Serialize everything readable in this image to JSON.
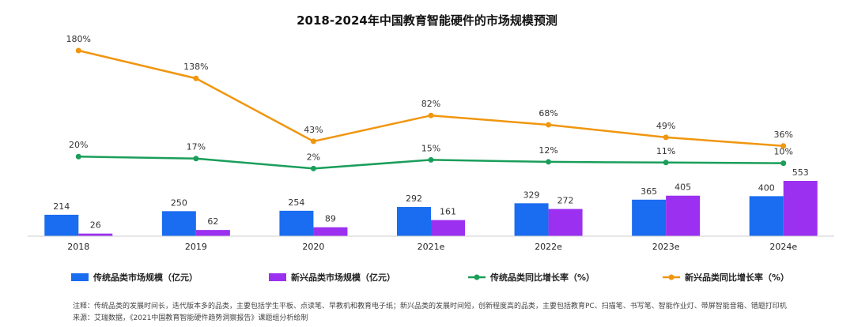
{
  "chart_data": {
    "type": "bar",
    "title": "2018-2024年中国教育智能硬件的市场规模预测",
    "categories": [
      "2018",
      "2019",
      "2020",
      "2021e",
      "2022e",
      "2023e",
      "2024e"
    ],
    "series": [
      {
        "name": "传统品类市场规模（亿元）",
        "kind": "bar",
        "color": "#1a6cf0",
        "values": [
          214,
          250,
          254,
          292,
          329,
          365,
          400
        ]
      },
      {
        "name": "新兴品类市场规模（亿元）",
        "kind": "bar",
        "color": "#9b30f0",
        "values": [
          26,
          62,
          89,
          161,
          272,
          405,
          553
        ]
      },
      {
        "name": "传统品类同比增长率（%）",
        "kind": "line",
        "color": "#1a9e5a",
        "values": [
          20,
          17,
          2,
          15,
          12,
          11,
          10
        ],
        "labels": [
          "20%",
          "17%",
          "2%",
          "15%",
          "12%",
          "11%",
          "10%"
        ]
      },
      {
        "name": "新兴品类同比增长率（%）",
        "kind": "line",
        "color": "#f0960f",
        "values": [
          180,
          138,
          43,
          82,
          68,
          49,
          36
        ],
        "labels": [
          "180%",
          "138%",
          "43%",
          "82%",
          "68%",
          "49%",
          "36%"
        ]
      }
    ],
    "legend_position": "bottom",
    "grid": false
  },
  "footnote": {
    "note": "注释：传统品类的发展时间长，迭代版本多的品类，主要包括学生平板、点读笔、早教机和教育电子纸；新兴品类的发展时间短，创新程度高的品类，主要包括教育PC、扫描笔、书写笔、智能作业灯、带屏智能音箱、错题打印机",
    "source": "来源：艾瑞数据，《2021中国教育智能硬件趋势洞察报告》课题组分析绘制"
  }
}
